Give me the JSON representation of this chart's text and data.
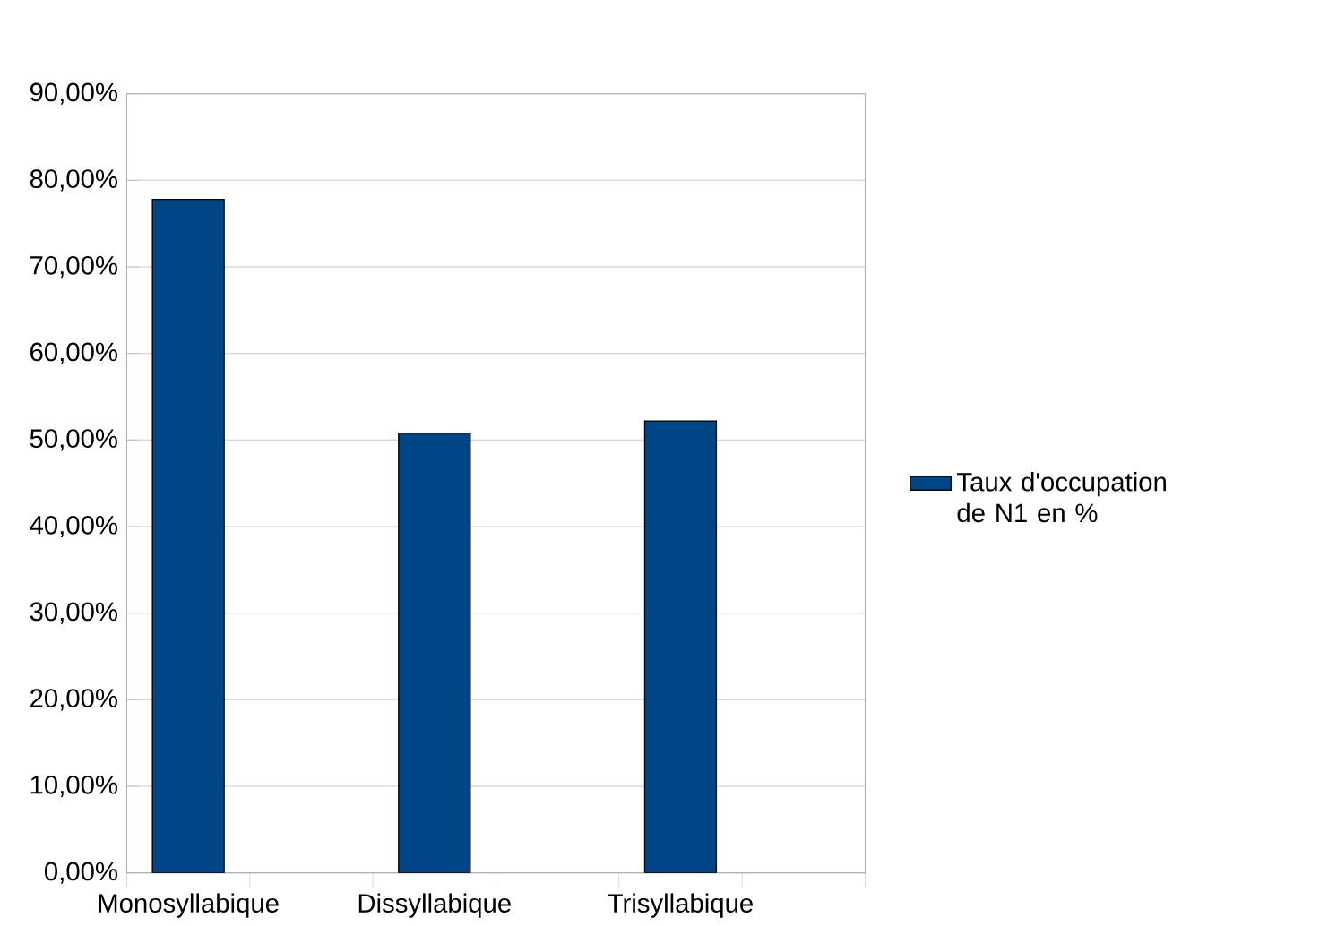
{
  "chart_data": {
    "type": "bar",
    "categories": [
      "Monosyllabique",
      "Dissyllabique",
      "Trisyllabique"
    ],
    "series": [
      {
        "name": "Taux d'occupation de N1 en %",
        "color": "#004586",
        "values": [
          77.8,
          50.8,
          52.2
        ]
      }
    ],
    "ylim": [
      0,
      90
    ],
    "yticks": [
      {
        "value": 0,
        "label": "0,00%"
      },
      {
        "value": 10,
        "label": "10,00%"
      },
      {
        "value": 20,
        "label": "20,00%"
      },
      {
        "value": 30,
        "label": "30,00%"
      },
      {
        "value": 40,
        "label": "40,00%"
      },
      {
        "value": 50,
        "label": "50,00%"
      },
      {
        "value": 60,
        "label": "60,00%"
      },
      {
        "value": 70,
        "label": "70,00%"
      },
      {
        "value": 80,
        "label": "80,00%"
      },
      {
        "value": 90,
        "label": "90,00%"
      }
    ],
    "grid": "y",
    "legend": "right"
  }
}
